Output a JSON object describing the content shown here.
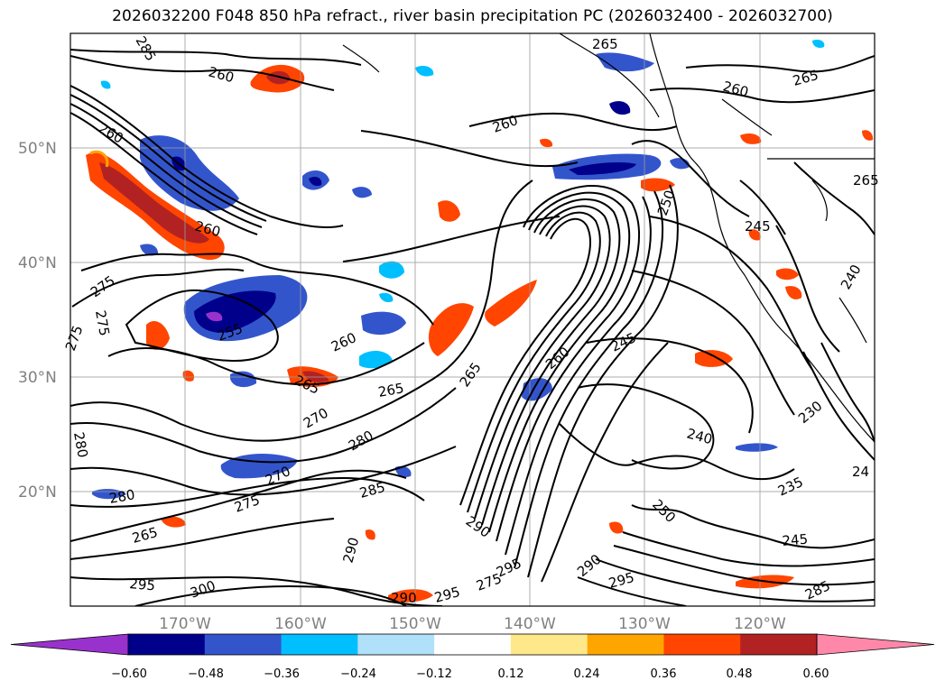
{
  "title": "2026032200 F048 850 hPa refract., river basin precipitation PC (2026032400 - 2026032700)",
  "map": {
    "projection": "PlateCarree",
    "lon_range": [
      -180,
      -110
    ],
    "lat_range": [
      10,
      60
    ],
    "lat_ticks": [
      {
        "label": "50°N",
        "value": 50
      },
      {
        "label": "40°N",
        "value": 40
      },
      {
        "label": "30°N",
        "value": 30
      },
      {
        "label": "20°N",
        "value": 20
      }
    ],
    "lon_ticks": [
      {
        "label": "170°W",
        "value": -170
      },
      {
        "label": "160°W",
        "value": -160
      },
      {
        "label": "150°W",
        "value": -150
      },
      {
        "label": "140°W",
        "value": -140
      },
      {
        "label": "130°W",
        "value": -130
      },
      {
        "label": "120°W",
        "value": -120
      }
    ],
    "gridlines": true,
    "contour_variable": "850 hPa refractivity",
    "contour_labels": [
      {
        "text": "260",
        "id": "c1"
      },
      {
        "text": "265",
        "id": "c2"
      },
      {
        "text": "260",
        "id": "c3"
      },
      {
        "text": "265",
        "id": "c4"
      },
      {
        "text": "260",
        "id": "c5"
      },
      {
        "text": "260",
        "id": "c6"
      },
      {
        "text": "260",
        "id": "c7"
      },
      {
        "text": "275",
        "id": "c8"
      },
      {
        "text": "275",
        "id": "c9"
      },
      {
        "text": "275",
        "id": "c10"
      },
      {
        "text": "255",
        "id": "c11"
      },
      {
        "text": "260",
        "id": "c12"
      },
      {
        "text": "265",
        "id": "c13"
      },
      {
        "text": "265",
        "id": "c14"
      },
      {
        "text": "270",
        "id": "c15"
      },
      {
        "text": "280",
        "id": "c16"
      },
      {
        "text": "280",
        "id": "c17"
      },
      {
        "text": "280",
        "id": "c18"
      },
      {
        "text": "275",
        "id": "c19"
      },
      {
        "text": "270",
        "id": "c20"
      },
      {
        "text": "285",
        "id": "c21"
      },
      {
        "text": "265",
        "id": "c22"
      },
      {
        "text": "290",
        "id": "c23"
      },
      {
        "text": "295",
        "id": "c24"
      },
      {
        "text": "300",
        "id": "c25"
      },
      {
        "text": "290",
        "id": "c26"
      },
      {
        "text": "295",
        "id": "c27"
      },
      {
        "text": "275",
        "id": "c28"
      },
      {
        "text": "295",
        "id": "c29"
      },
      {
        "text": "290",
        "id": "c30"
      },
      {
        "text": "295",
        "id": "c31"
      },
      {
        "text": "285",
        "id": "c32"
      },
      {
        "text": "290",
        "id": "c33"
      },
      {
        "text": "245",
        "id": "c34"
      },
      {
        "text": "240",
        "id": "c35"
      },
      {
        "text": "250",
        "id": "c36"
      },
      {
        "text": "235",
        "id": "c37"
      },
      {
        "text": "245",
        "id": "c38"
      },
      {
        "text": "230",
        "id": "c39"
      },
      {
        "text": "245",
        "id": "c40"
      },
      {
        "text": "250",
        "id": "c41"
      },
      {
        "text": "240",
        "id": "c42"
      },
      {
        "text": "265",
        "id": "c43"
      },
      {
        "text": "260",
        "id": "c44"
      },
      {
        "text": "265",
        "id": "c45"
      },
      {
        "text": "24",
        "id": "c46"
      },
      {
        "text": "285",
        "id": "c47"
      }
    ]
  },
  "colorbar": {
    "ticks": [
      "−0.60",
      "−0.48",
      "−0.36",
      "−0.24",
      "−0.12",
      "0.12",
      "0.24",
      "0.36",
      "0.48",
      "0.60"
    ],
    "colors": [
      "#9932cc",
      "#00008b",
      "#3355cc",
      "#00bfff",
      "#b0e0fa",
      "#ffffff",
      "#ffe88a",
      "#ffa500",
      "#ff4500",
      "#b22222",
      "#ff88aa"
    ],
    "extend": "both"
  }
}
